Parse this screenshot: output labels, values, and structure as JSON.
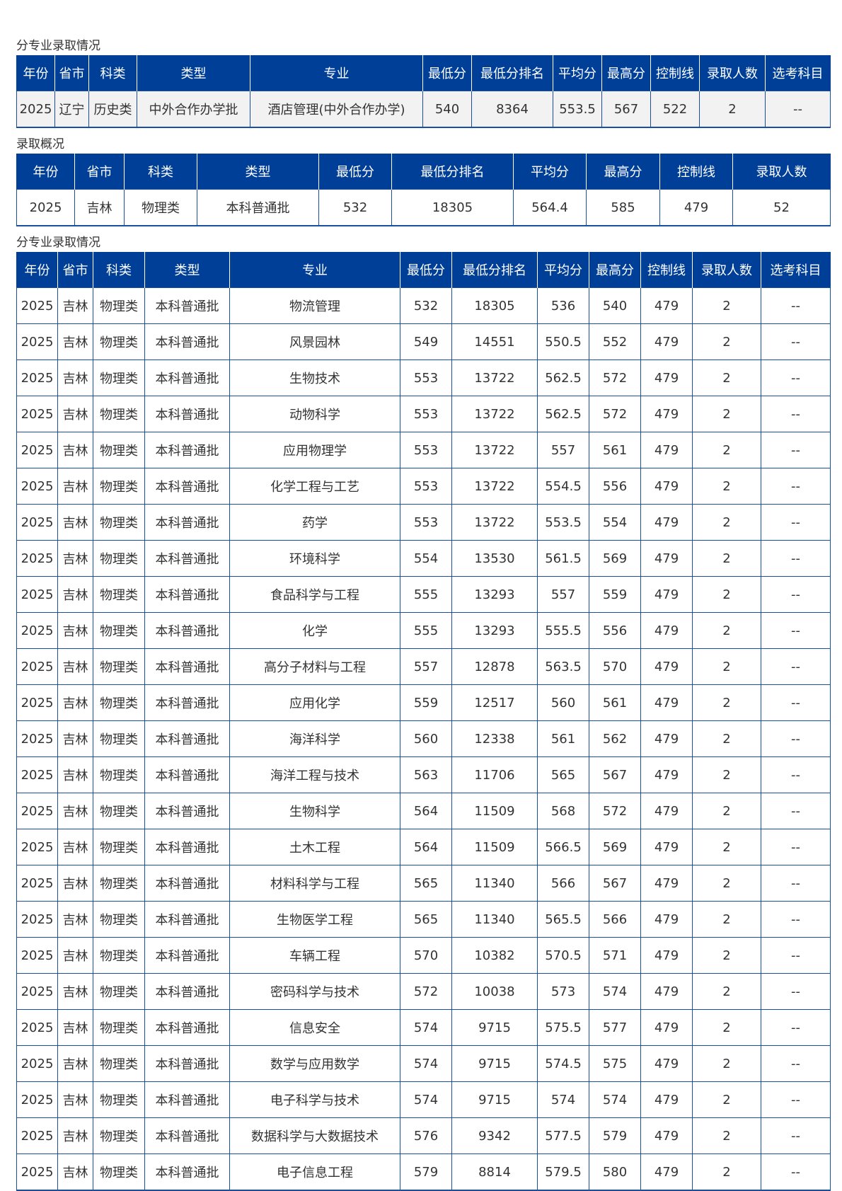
{
  "sections": [
    {
      "title": "分专业录取情况",
      "headers": [
        "年份",
        "省市",
        "科类",
        "类型",
        "专业",
        "最低分",
        "最低分排名",
        "平均分",
        "最高分",
        "控制线",
        "录取人数",
        "选考科目"
      ],
      "rows": [
        [
          "2025",
          "辽宁",
          "历史类",
          "中外合作办学批",
          "酒店管理(中外合作办学)",
          "540",
          "8364",
          "553.5",
          "567",
          "522",
          "2",
          "--"
        ]
      ]
    },
    {
      "title": "录取概况",
      "headers": [
        "年份",
        "省市",
        "科类",
        "类型",
        "最低分",
        "最低分排名",
        "平均分",
        "最高分",
        "控制线",
        "录取人数"
      ],
      "rows": [
        [
          "2025",
          "吉林",
          "物理类",
          "本科普通批",
          "532",
          "18305",
          "564.4",
          "585",
          "479",
          "52"
        ]
      ]
    },
    {
      "title": "分专业录取情况",
      "headers": [
        "年份",
        "省市",
        "科类",
        "类型",
        "专业",
        "最低分",
        "最低分排名",
        "平均分",
        "最高分",
        "控制线",
        "录取人数",
        "选考科目"
      ],
      "rows": [
        [
          "2025",
          "吉林",
          "物理类",
          "本科普通批",
          "物流管理",
          "532",
          "18305",
          "536",
          "540",
          "479",
          "2",
          "--"
        ],
        [
          "2025",
          "吉林",
          "物理类",
          "本科普通批",
          "风景园林",
          "549",
          "14551",
          "550.5",
          "552",
          "479",
          "2",
          "--"
        ],
        [
          "2025",
          "吉林",
          "物理类",
          "本科普通批",
          "生物技术",
          "553",
          "13722",
          "562.5",
          "572",
          "479",
          "2",
          "--"
        ],
        [
          "2025",
          "吉林",
          "物理类",
          "本科普通批",
          "动物科学",
          "553",
          "13722",
          "562.5",
          "572",
          "479",
          "2",
          "--"
        ],
        [
          "2025",
          "吉林",
          "物理类",
          "本科普通批",
          "应用物理学",
          "553",
          "13722",
          "557",
          "561",
          "479",
          "2",
          "--"
        ],
        [
          "2025",
          "吉林",
          "物理类",
          "本科普通批",
          "化学工程与工艺",
          "553",
          "13722",
          "554.5",
          "556",
          "479",
          "2",
          "--"
        ],
        [
          "2025",
          "吉林",
          "物理类",
          "本科普通批",
          "药学",
          "553",
          "13722",
          "553.5",
          "554",
          "479",
          "2",
          "--"
        ],
        [
          "2025",
          "吉林",
          "物理类",
          "本科普通批",
          "环境科学",
          "554",
          "13530",
          "561.5",
          "569",
          "479",
          "2",
          "--"
        ],
        [
          "2025",
          "吉林",
          "物理类",
          "本科普通批",
          "食品科学与工程",
          "555",
          "13293",
          "557",
          "559",
          "479",
          "2",
          "--"
        ],
        [
          "2025",
          "吉林",
          "物理类",
          "本科普通批",
          "化学",
          "555",
          "13293",
          "555.5",
          "556",
          "479",
          "2",
          "--"
        ],
        [
          "2025",
          "吉林",
          "物理类",
          "本科普通批",
          "高分子材料与工程",
          "557",
          "12878",
          "563.5",
          "570",
          "479",
          "2",
          "--"
        ],
        [
          "2025",
          "吉林",
          "物理类",
          "本科普通批",
          "应用化学",
          "559",
          "12517",
          "560",
          "561",
          "479",
          "2",
          "--"
        ],
        [
          "2025",
          "吉林",
          "物理类",
          "本科普通批",
          "海洋科学",
          "560",
          "12338",
          "561",
          "562",
          "479",
          "2",
          "--"
        ],
        [
          "2025",
          "吉林",
          "物理类",
          "本科普通批",
          "海洋工程与技术",
          "563",
          "11706",
          "565",
          "567",
          "479",
          "2",
          "--"
        ],
        [
          "2025",
          "吉林",
          "物理类",
          "本科普通批",
          "生物科学",
          "564",
          "11509",
          "568",
          "572",
          "479",
          "2",
          "--"
        ],
        [
          "2025",
          "吉林",
          "物理类",
          "本科普通批",
          "土木工程",
          "564",
          "11509",
          "566.5",
          "569",
          "479",
          "2",
          "--"
        ],
        [
          "2025",
          "吉林",
          "物理类",
          "本科普通批",
          "材料科学与工程",
          "565",
          "11340",
          "566",
          "567",
          "479",
          "2",
          "--"
        ],
        [
          "2025",
          "吉林",
          "物理类",
          "本科普通批",
          "生物医学工程",
          "565",
          "11340",
          "565.5",
          "566",
          "479",
          "2",
          "--"
        ],
        [
          "2025",
          "吉林",
          "物理类",
          "本科普通批",
          "车辆工程",
          "570",
          "10382",
          "570.5",
          "571",
          "479",
          "2",
          "--"
        ],
        [
          "2025",
          "吉林",
          "物理类",
          "本科普通批",
          "密码科学与技术",
          "572",
          "10038",
          "573",
          "574",
          "479",
          "2",
          "--"
        ],
        [
          "2025",
          "吉林",
          "物理类",
          "本科普通批",
          "信息安全",
          "574",
          "9715",
          "575.5",
          "577",
          "479",
          "2",
          "--"
        ],
        [
          "2025",
          "吉林",
          "物理类",
          "本科普通批",
          "数学与应用数学",
          "574",
          "9715",
          "574.5",
          "575",
          "479",
          "2",
          "--"
        ],
        [
          "2025",
          "吉林",
          "物理类",
          "本科普通批",
          "电子科学与技术",
          "574",
          "9715",
          "574",
          "574",
          "479",
          "2",
          "--"
        ],
        [
          "2025",
          "吉林",
          "物理类",
          "本科普通批",
          "数据科学与大数据技术",
          "576",
          "9342",
          "577.5",
          "579",
          "479",
          "2",
          "--"
        ],
        [
          "2025",
          "吉林",
          "物理类",
          "本科普通批",
          "电子信息工程",
          "579",
          "8814",
          "579.5",
          "580",
          "479",
          "2",
          "--"
        ]
      ]
    }
  ],
  "colors": {
    "header_bg": "#003f98",
    "border": "#1a4fa0",
    "highlight_row": "#f2f2f2"
  }
}
